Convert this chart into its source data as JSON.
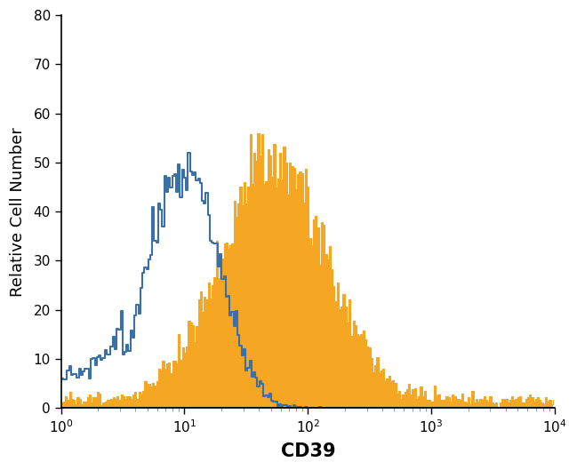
{
  "title": "",
  "xlabel": "CD39",
  "ylabel": "Relative Cell Number",
  "xlim": [
    1,
    10000
  ],
  "ylim": [
    0,
    80
  ],
  "yticks": [
    0,
    10,
    20,
    30,
    40,
    50,
    60,
    70,
    80
  ],
  "blue_color": "#3a6fa8",
  "orange_color": "#f5a623",
  "orange_fill_color": "#f5a623",
  "background_color": "#ffffff",
  "xlabel_fontsize": 15,
  "ylabel_fontsize": 13
}
